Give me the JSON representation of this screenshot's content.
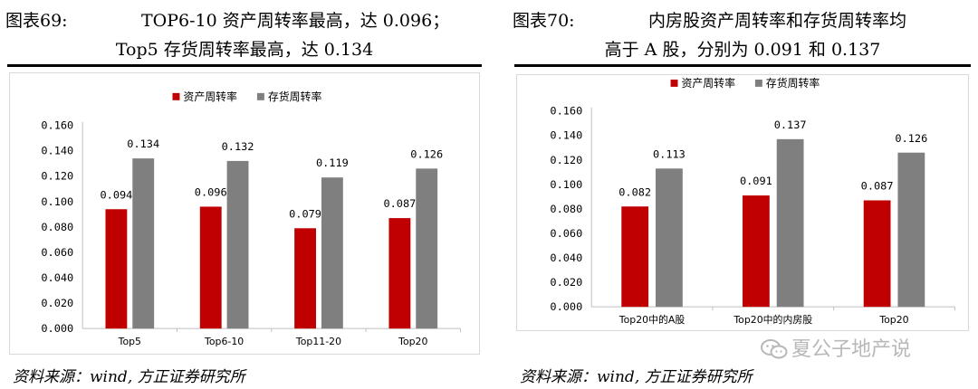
{
  "left": {
    "title_label": "图表69:",
    "title_line1": "TOP6-10 资产周转率最高，达 0.096；",
    "title_line2": "Top5 存货周转率最高，达 0.134",
    "source": "资料来源：wind, 方正证券研究所"
  },
  "right": {
    "title_label": "图表70:",
    "title_line1": "内房股资产周转率和存货周转率均",
    "title_line2": "高于 A 股，分别为 0.091 和 0.137",
    "source": "资料来源：wind, 方正证券研究所"
  },
  "watermark": {
    "text": "夏公子地产说"
  },
  "colors": {
    "asset": "#c00000",
    "inventory": "#7f7f7f",
    "grid": "#d9d9d9"
  },
  "chart_data": [
    {
      "type": "bar",
      "categories": [
        "Top5",
        "Top6-10",
        "Top11-20",
        "Top20"
      ],
      "series": [
        {
          "name": "资产周转率",
          "values": [
            0.094,
            0.096,
            0.079,
            0.087
          ],
          "value_labels": [
            "0.094",
            "0.096",
            "0.079",
            "0.087"
          ]
        },
        {
          "name": "存货周转率",
          "values": [
            0.134,
            0.132,
            0.119,
            0.126
          ],
          "value_labels": [
            "0.134",
            "0.132",
            "0.119",
            "0.126"
          ]
        }
      ],
      "ylim": [
        0,
        0.16
      ],
      "yticks": [
        0,
        0.02,
        0.04,
        0.06,
        0.08,
        0.1,
        0.12,
        0.14,
        0.16
      ],
      "ytick_labels": [
        "0.000",
        "0.020",
        "0.040",
        "0.060",
        "0.080",
        "0.100",
        "0.120",
        "0.140",
        "0.160"
      ],
      "legend": "top-center",
      "grid": false
    },
    {
      "type": "bar",
      "categories": [
        "Top20中的A股",
        "Top20中的内房股",
        "Top20"
      ],
      "series": [
        {
          "name": "资产周转率",
          "values": [
            0.082,
            0.091,
            0.087
          ],
          "value_labels": [
            "0.082",
            "0.091",
            "0.087"
          ]
        },
        {
          "name": "存货周转率",
          "values": [
            0.113,
            0.137,
            0.126
          ],
          "value_labels": [
            "0.113",
            "0.137",
            "0.126"
          ]
        }
      ],
      "ylim": [
        0,
        0.16
      ],
      "yticks": [
        0,
        0.02,
        0.04,
        0.06,
        0.08,
        0.1,
        0.12,
        0.14,
        0.16
      ],
      "ytick_labels": [
        "0.000",
        "0.020",
        "0.040",
        "0.060",
        "0.080",
        "0.100",
        "0.120",
        "0.140",
        "0.160"
      ],
      "legend": "top-center",
      "grid": false
    }
  ]
}
